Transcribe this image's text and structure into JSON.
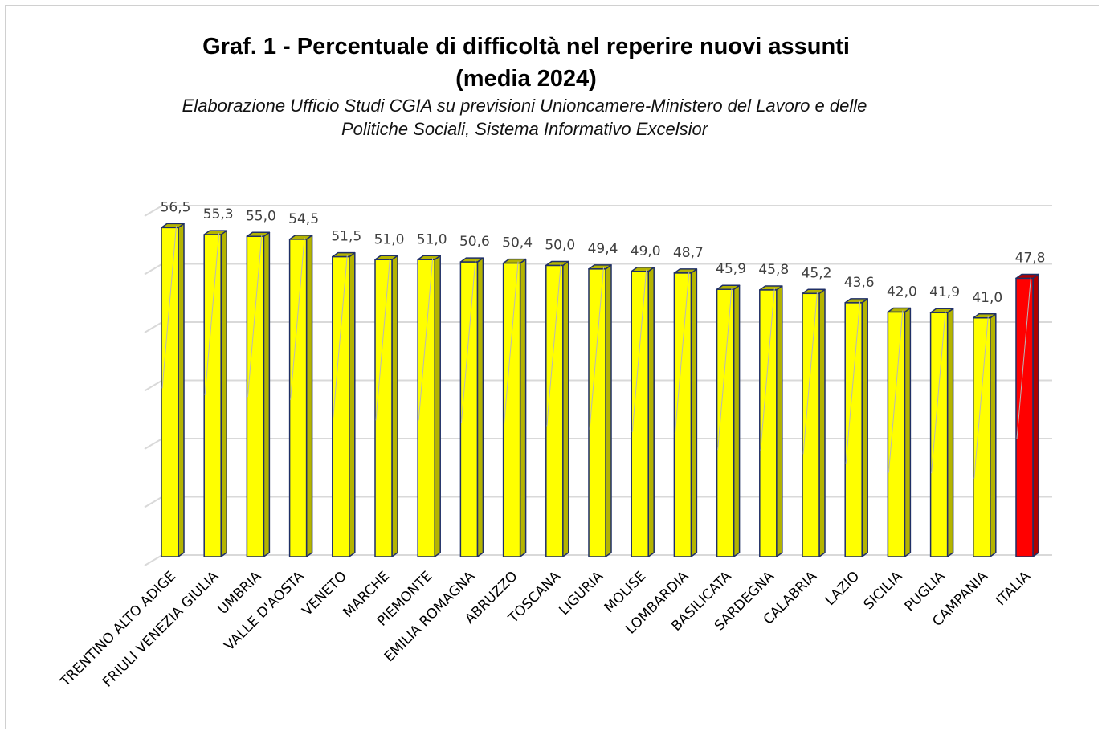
{
  "title_line1": "Graf. 1 - Percentuale di difficoltà nel reperire nuovi assunti",
  "title_line2": "(media 2024)",
  "subtitle_line1": "Elaborazione Ufficio Studi CGIA su previsioni Unioncamere-Ministero del Lavoro e delle",
  "subtitle_line2": "Politiche Sociali, Sistema Informativo Excelsior",
  "colors": {
    "bar_regions": "#ffff00",
    "bar_regions_side": "#b4b400",
    "bar_italia": "#ff0000",
    "bar_italia_side": "#b00000",
    "bar_outline": "#1f2f66",
    "gridline": "#d9d9d9",
    "label_text": "#404040"
  },
  "chart_data": {
    "type": "bar",
    "title": "Graf. 1 - Percentuale di difficoltà nel reperire nuovi assunti (media 2024)",
    "subtitle": "Elaborazione Ufficio Studi CGIA su previsioni Unioncamere-Ministero del Lavoro e delle Politiche Sociali, Sistema Informativo Excelsior",
    "categories": [
      "TRENTINO ALTO ADIGE",
      "FRIULI VENEZIA GIULIA",
      "UMBRIA",
      "VALLE D'AOSTA",
      "VENETO",
      "MARCHE",
      "PIEMONTE",
      "EMILIA ROMAGNA",
      "ABRUZZO",
      "TOSCANA",
      "LIGURIA",
      "MOLISE",
      "LOMBARDIA",
      "BASILICATA",
      "SARDEGNA",
      "CALABRIA",
      "LAZIO",
      "SICILIA",
      "PUGLIA",
      "CAMPANIA",
      "ITALIA"
    ],
    "values": [
      56.5,
      55.3,
      55.0,
      54.5,
      51.5,
      51.0,
      51.0,
      50.6,
      50.4,
      50.0,
      49.4,
      49.0,
      48.7,
      45.9,
      45.8,
      45.2,
      43.6,
      42.0,
      41.9,
      41.0,
      47.8
    ],
    "value_labels": [
      "56,5",
      "55,3",
      "55,0",
      "54,5",
      "51,5",
      "51,0",
      "51,0",
      "50,6",
      "50,4",
      "50,0",
      "49,4",
      "49,0",
      "48,7",
      "45,9",
      "45,8",
      "45,2",
      "43,6",
      "42,0",
      "41,9",
      "41,0",
      "47,8"
    ],
    "highlight_category": "ITALIA",
    "ylim": [
      0,
      60
    ],
    "grid": true,
    "legend": "none",
    "style": "3d-column"
  }
}
